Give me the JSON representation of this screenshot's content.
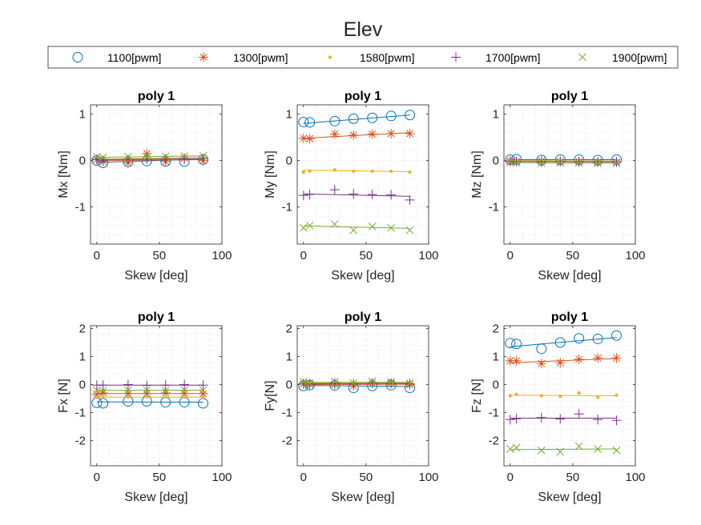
{
  "figure": {
    "title": "Elev"
  },
  "legend": {
    "placement": "top",
    "entries": [
      {
        "label": "1100[pwm]",
        "marker": "circle",
        "color": "#0072BD"
      },
      {
        "label": "1300[pwm]",
        "marker": "asterisk",
        "color": "#D95319"
      },
      {
        "label": "1580[pwm]",
        "marker": "dot",
        "color": "#EDB120"
      },
      {
        "label": "1700[pwm]",
        "marker": "plus",
        "color": "#7E2F8E"
      },
      {
        "label": "1900[pwm]",
        "marker": "cross",
        "color": "#77AC30"
      }
    ]
  },
  "chart_data": [
    {
      "type": "scatter",
      "title": "poly 1",
      "xlabel": "Skew [deg]",
      "ylabel": "Mx [Nm]",
      "xlim": [
        -5,
        100
      ],
      "ylim": [
        -1.8,
        1.2
      ],
      "xticks": [
        0,
        50,
        100
      ],
      "yticks": [
        -1,
        0,
        1
      ],
      "grid": "minor-dotted",
      "x": [
        0,
        5,
        25,
        40,
        55,
        70,
        85
      ],
      "series": [
        {
          "name": "1100[pwm]",
          "values": [
            0.0,
            -0.05,
            -0.03,
            -0.01,
            -0.02,
            -0.02,
            0.02
          ],
          "fit": [
            -0.04,
            0.03
          ]
        },
        {
          "name": "1300[pwm]",
          "values": [
            0.02,
            -0.02,
            -0.05,
            0.15,
            -0.02,
            0.05,
            0.0
          ],
          "fit": [
            0.0,
            0.02
          ]
        },
        {
          "name": "1580[pwm]",
          "values": [
            0.05,
            0.03,
            0.04,
            0.05,
            0.05,
            0.06,
            0.07
          ],
          "fit": [
            0.03,
            0.07
          ]
        },
        {
          "name": "1700[pwm]",
          "values": [
            0.03,
            0.0,
            0.02,
            0.03,
            0.03,
            0.03,
            0.04
          ],
          "fit": [
            0.02,
            0.04
          ]
        },
        {
          "name": "1900[pwm]",
          "values": [
            0.08,
            0.07,
            0.08,
            0.08,
            0.09,
            0.1,
            0.1
          ],
          "fit": [
            0.07,
            0.1
          ]
        }
      ]
    },
    {
      "type": "scatter",
      "title": "poly 1",
      "xlabel": "Skew [deg]",
      "ylabel": "My [Nm]",
      "xlim": [
        -5,
        100
      ],
      "ylim": [
        -1.8,
        1.2
      ],
      "xticks": [
        0,
        50,
        100
      ],
      "yticks": [
        -1,
        0,
        1
      ],
      "grid": "minor-dotted",
      "x": [
        0,
        5,
        25,
        40,
        55,
        70,
        85
      ],
      "series": [
        {
          "name": "1100[pwm]",
          "values": [
            0.83,
            0.82,
            0.85,
            0.9,
            0.92,
            0.96,
            0.98
          ],
          "fit": [
            0.8,
            0.98
          ]
        },
        {
          "name": "1300[pwm]",
          "values": [
            0.48,
            0.47,
            0.57,
            0.55,
            0.57,
            0.58,
            0.58
          ],
          "fit": [
            0.48,
            0.6
          ]
        },
        {
          "name": "1580[pwm]",
          "values": [
            -0.25,
            -0.23,
            -0.2,
            -0.23,
            -0.23,
            -0.23,
            -0.25
          ],
          "fit": [
            -0.21,
            -0.24
          ]
        },
        {
          "name": "1700[pwm]",
          "values": [
            -0.75,
            -0.73,
            -0.63,
            -0.72,
            -0.73,
            -0.74,
            -0.85
          ],
          "fit": [
            -0.72,
            -0.77
          ]
        },
        {
          "name": "1900[pwm]",
          "values": [
            -1.45,
            -1.4,
            -1.37,
            -1.5,
            -1.42,
            -1.45,
            -1.5
          ],
          "fit": [
            -1.41,
            -1.46
          ]
        }
      ]
    },
    {
      "type": "scatter",
      "title": "poly 1",
      "xlabel": "Skew [deg]",
      "ylabel": "Mz [Nm]",
      "xlim": [
        -5,
        100
      ],
      "ylim": [
        -1.8,
        1.2
      ],
      "xticks": [
        0,
        50,
        100
      ],
      "yticks": [
        -1,
        0,
        1
      ],
      "grid": "minor-dotted",
      "x": [
        0,
        5,
        25,
        40,
        55,
        70,
        85
      ],
      "series": [
        {
          "name": "1100[pwm]",
          "values": [
            0.02,
            0.03,
            0.01,
            0.02,
            0.02,
            0.01,
            0.02
          ],
          "fit": [
            0.02,
            0.02
          ]
        },
        {
          "name": "1300[pwm]",
          "values": [
            -0.01,
            -0.02,
            -0.01,
            -0.02,
            -0.02,
            -0.03,
            -0.03
          ],
          "fit": [
            -0.01,
            -0.03
          ]
        },
        {
          "name": "1580[pwm]",
          "values": [
            0.0,
            0.0,
            -0.01,
            0.0,
            -0.01,
            -0.01,
            -0.01
          ],
          "fit": [
            0.0,
            -0.01
          ]
        },
        {
          "name": "1700[pwm]",
          "values": [
            -0.02,
            -0.02,
            -0.03,
            -0.02,
            -0.03,
            -0.03,
            -0.03
          ],
          "fit": [
            -0.02,
            -0.03
          ]
        },
        {
          "name": "1900[pwm]",
          "values": [
            -0.04,
            -0.05,
            -0.06,
            -0.05,
            -0.05,
            -0.06,
            -0.06
          ],
          "fit": [
            -0.05,
            -0.06
          ]
        }
      ]
    },
    {
      "type": "scatter",
      "title": "poly 1",
      "xlabel": "Skew [deg]",
      "ylabel": "Fx [N]",
      "xlim": [
        -5,
        100
      ],
      "ylim": [
        -2.9,
        2.1
      ],
      "xticks": [
        0,
        50,
        100
      ],
      "yticks": [
        -2,
        -1,
        0,
        1,
        2
      ],
      "grid": "minor-dotted",
      "x": [
        0,
        5,
        25,
        40,
        55,
        70,
        85
      ],
      "series": [
        {
          "name": "1100[pwm]",
          "values": [
            -0.65,
            -0.67,
            -0.6,
            -0.6,
            -0.63,
            -0.63,
            -0.67
          ],
          "fit": [
            -0.62,
            -0.63
          ]
        },
        {
          "name": "1300[pwm]",
          "values": [
            -0.35,
            -0.3,
            -0.32,
            -0.32,
            -0.3,
            -0.32,
            -0.33
          ],
          "fit": [
            -0.32,
            -0.32
          ]
        },
        {
          "name": "1580[pwm]",
          "values": [
            -0.45,
            -0.45,
            -0.45,
            -0.44,
            -0.44,
            -0.45,
            -0.45
          ],
          "fit": [
            -0.45,
            -0.45
          ]
        },
        {
          "name": "1700[pwm]",
          "values": [
            -0.02,
            -0.02,
            0.0,
            -0.03,
            -0.02,
            0.0,
            -0.02
          ],
          "fit": [
            -0.02,
            -0.02
          ]
        },
        {
          "name": "1900[pwm]",
          "values": [
            -0.2,
            -0.22,
            -0.2,
            -0.2,
            -0.21,
            -0.2,
            -0.2
          ],
          "fit": [
            -0.21,
            -0.2
          ]
        }
      ]
    },
    {
      "type": "scatter",
      "title": "poly 1",
      "xlabel": "Skew [deg]",
      "ylabel": "Fy[N]",
      "xlim": [
        -5,
        100
      ],
      "ylim": [
        -2.9,
        2.1
      ],
      "xticks": [
        0,
        50,
        100
      ],
      "yticks": [
        -2,
        -1,
        0,
        1,
        2
      ],
      "grid": "minor-dotted",
      "x": [
        0,
        5,
        25,
        40,
        55,
        70,
        85
      ],
      "series": [
        {
          "name": "1100[pwm]",
          "values": [
            -0.05,
            -0.02,
            -0.03,
            -0.12,
            -0.05,
            -0.02,
            -0.12
          ],
          "fit": [
            -0.03,
            -0.07
          ]
        },
        {
          "name": "1300[pwm]",
          "values": [
            0.02,
            0.0,
            0.0,
            -0.05,
            0.05,
            0.05,
            0.0
          ],
          "fit": [
            0.0,
            0.01
          ]
        },
        {
          "name": "1580[pwm]",
          "values": [
            0.05,
            0.04,
            0.05,
            0.05,
            0.05,
            0.06,
            0.05
          ],
          "fit": [
            0.05,
            0.05
          ]
        },
        {
          "name": "1700[pwm]",
          "values": [
            0.03,
            0.02,
            0.05,
            0.02,
            0.05,
            0.05,
            0.03
          ],
          "fit": [
            0.03,
            0.04
          ]
        },
        {
          "name": "1900[pwm]",
          "values": [
            0.1,
            0.05,
            0.1,
            0.05,
            0.12,
            0.1,
            0.05
          ],
          "fit": [
            0.08,
            0.08
          ]
        }
      ]
    },
    {
      "type": "scatter",
      "title": "poly 1",
      "xlabel": "Skew [deg]",
      "ylabel": "Fz [N]",
      "xlim": [
        -5,
        100
      ],
      "ylim": [
        -2.9,
        2.1
      ],
      "xticks": [
        0,
        50,
        100
      ],
      "yticks": [
        -2,
        -1,
        0,
        1,
        2
      ],
      "grid": "minor-dotted",
      "x": [
        0,
        5,
        25,
        40,
        55,
        70,
        85
      ],
      "series": [
        {
          "name": "1100[pwm]",
          "values": [
            1.48,
            1.45,
            1.28,
            1.5,
            1.65,
            1.63,
            1.75
          ],
          "fit": [
            1.35,
            1.68
          ]
        },
        {
          "name": "1300[pwm]",
          "values": [
            0.85,
            0.85,
            0.75,
            0.78,
            0.9,
            0.95,
            0.95
          ],
          "fit": [
            0.78,
            0.93
          ]
        },
        {
          "name": "1580[pwm]",
          "values": [
            -0.4,
            -0.35,
            -0.4,
            -0.42,
            -0.3,
            -0.45,
            -0.38
          ],
          "fit": [
            -0.38,
            -0.4
          ]
        },
        {
          "name": "1700[pwm]",
          "values": [
            -1.25,
            -1.22,
            -1.18,
            -1.23,
            -1.05,
            -1.25,
            -1.28
          ],
          "fit": [
            -1.2,
            -1.2
          ]
        },
        {
          "name": "1900[pwm]",
          "values": [
            -2.3,
            -2.25,
            -2.35,
            -2.4,
            -2.2,
            -2.3,
            -2.35
          ],
          "fit": [
            -2.32,
            -2.3
          ]
        }
      ]
    }
  ]
}
